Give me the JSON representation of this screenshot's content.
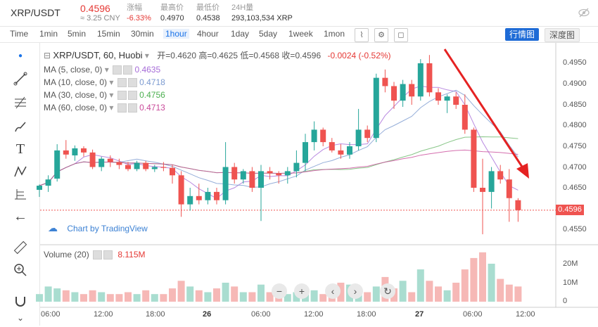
{
  "header": {
    "symbol": "XRP/USDT",
    "price": "0.4596",
    "cny": "≈ 3.25 CNY",
    "stats": [
      {
        "label": "涨幅",
        "value": "-6.33%",
        "red": true
      },
      {
        "label": "最高价",
        "value": "0.4970",
        "red": false
      },
      {
        "label": "最低价",
        "value": "0.4538",
        "red": false
      },
      {
        "label": "24H量",
        "value": "293,103,534 XRP",
        "red": false
      }
    ]
  },
  "timeframes": [
    "Time",
    "1min",
    "5min",
    "15min",
    "30min",
    "1hour",
    "4hour",
    "1day",
    "5day",
    "1week",
    "1mon"
  ],
  "active_timeframe": "1hour",
  "toolbar_icons": [
    "candle-style-icon",
    "settings-icon",
    "screenshot-icon"
  ],
  "view_buttons": {
    "active": "行情图",
    "inactive": "深度图"
  },
  "legend": {
    "title": "XRP/USDT, 60, Huobi",
    "ohlc": "开=0.4620  高=0.4625  低=0.4568  收=0.4596",
    "change": "-0.0024 (-0.52%)",
    "mas": [
      {
        "name": "MA (5, close, 0)",
        "value": "0.4635",
        "color": "#a66cd8"
      },
      {
        "name": "MA (10, close, 0)",
        "value": "0.4718",
        "color": "#7b9ad0"
      },
      {
        "name": "MA (30, close, 0)",
        "value": "0.4756",
        "color": "#6ab86a"
      },
      {
        "name": "MA (60, close, 0)",
        "value": "0.4713",
        "color": "#c94a9a"
      }
    ],
    "volume": {
      "name": "Volume (20)",
      "value": "8.115M"
    }
  },
  "y_axis": [
    "0.4950",
    "0.4900",
    "0.4850",
    "0.4800",
    "0.4750",
    "0.4700",
    "0.4650",
    "0.4550"
  ],
  "current_price_tag": "0.4596",
  "vol_axis": [
    "20M",
    "10M",
    "0"
  ],
  "x_axis": [
    {
      "label": "06:00",
      "bold": false
    },
    {
      "label": "12:00",
      "bold": false
    },
    {
      "label": "18:00",
      "bold": false
    },
    {
      "label": "26",
      "bold": true
    },
    {
      "label": "06:00",
      "bold": false
    },
    {
      "label": "12:00",
      "bold": false
    },
    {
      "label": "18:00",
      "bold": false
    },
    {
      "label": "27",
      "bold": true
    },
    {
      "label": "06:00",
      "bold": false
    },
    {
      "label": "12:00",
      "bold": false
    }
  ],
  "watermark": "Chart by TradingView",
  "tools": [
    "cursor-icon",
    "trendline-icon",
    "fib-icon",
    "brush-icon",
    "text-icon",
    "pattern-icon",
    "measure-icon",
    "back-arrow-icon",
    "ruler-icon",
    "zoom-in-icon",
    "magnet-icon"
  ],
  "nav_buttons": [
    "−",
    "+",
    "‹",
    "›",
    "↻"
  ],
  "colors": {
    "up": "#26a69a",
    "down": "#ef5350",
    "arrow": "#e52222"
  },
  "candles": [
    {
      "o": 0.4645,
      "h": 0.4658,
      "l": 0.4628,
      "c": 0.4655
    },
    {
      "o": 0.4655,
      "h": 0.468,
      "l": 0.464,
      "c": 0.467
    },
    {
      "o": 0.4672,
      "h": 0.4755,
      "l": 0.4665,
      "c": 0.474
    },
    {
      "o": 0.474,
      "h": 0.4765,
      "l": 0.472,
      "c": 0.473
    },
    {
      "o": 0.4728,
      "h": 0.4752,
      "l": 0.4715,
      "c": 0.4745
    },
    {
      "o": 0.4745,
      "h": 0.475,
      "l": 0.4725,
      "c": 0.4735
    },
    {
      "o": 0.4735,
      "h": 0.4742,
      "l": 0.4695,
      "c": 0.47
    },
    {
      "o": 0.47,
      "h": 0.4725,
      "l": 0.469,
      "c": 0.472
    },
    {
      "o": 0.472,
      "h": 0.4728,
      "l": 0.47,
      "c": 0.4712
    },
    {
      "o": 0.4712,
      "h": 0.472,
      "l": 0.4695,
      "c": 0.4705
    },
    {
      "o": 0.4705,
      "h": 0.4712,
      "l": 0.469,
      "c": 0.4695
    },
    {
      "o": 0.4695,
      "h": 0.4715,
      "l": 0.469,
      "c": 0.471
    },
    {
      "o": 0.471,
      "h": 0.4715,
      "l": 0.469,
      "c": 0.4695
    },
    {
      "o": 0.4695,
      "h": 0.4705,
      "l": 0.4688,
      "c": 0.47
    },
    {
      "o": 0.47,
      "h": 0.4712,
      "l": 0.469,
      "c": 0.4698
    },
    {
      "o": 0.4698,
      "h": 0.4705,
      "l": 0.466,
      "c": 0.468
    },
    {
      "o": 0.468,
      "h": 0.469,
      "l": 0.458,
      "c": 0.461
    },
    {
      "o": 0.461,
      "h": 0.465,
      "l": 0.4595,
      "c": 0.463
    },
    {
      "o": 0.463,
      "h": 0.466,
      "l": 0.461,
      "c": 0.462
    },
    {
      "o": 0.462,
      "h": 0.465,
      "l": 0.461,
      "c": 0.464
    },
    {
      "o": 0.464,
      "h": 0.465,
      "l": 0.461,
      "c": 0.462
    },
    {
      "o": 0.462,
      "h": 0.476,
      "l": 0.461,
      "c": 0.47
    },
    {
      "o": 0.47,
      "h": 0.471,
      "l": 0.466,
      "c": 0.467
    },
    {
      "o": 0.467,
      "h": 0.4695,
      "l": 0.466,
      "c": 0.469
    },
    {
      "o": 0.469,
      "h": 0.47,
      "l": 0.464,
      "c": 0.465
    },
    {
      "o": 0.465,
      "h": 0.4705,
      "l": 0.457,
      "c": 0.469
    },
    {
      "o": 0.469,
      "h": 0.47,
      "l": 0.467,
      "c": 0.4685
    },
    {
      "o": 0.4685,
      "h": 0.469,
      "l": 0.466,
      "c": 0.468
    },
    {
      "o": 0.468,
      "h": 0.47,
      "l": 0.466,
      "c": 0.469
    },
    {
      "o": 0.469,
      "h": 0.474,
      "l": 0.4675,
      "c": 0.471
    },
    {
      "o": 0.471,
      "h": 0.478,
      "l": 0.469,
      "c": 0.476
    },
    {
      "o": 0.476,
      "h": 0.481,
      "l": 0.474,
      "c": 0.479
    },
    {
      "o": 0.479,
      "h": 0.4795,
      "l": 0.475,
      "c": 0.476
    },
    {
      "o": 0.476,
      "h": 0.477,
      "l": 0.4735,
      "c": 0.474
    },
    {
      "o": 0.474,
      "h": 0.4755,
      "l": 0.472,
      "c": 0.473
    },
    {
      "o": 0.473,
      "h": 0.476,
      "l": 0.472,
      "c": 0.475
    },
    {
      "o": 0.475,
      "h": 0.484,
      "l": 0.474,
      "c": 0.479
    },
    {
      "o": 0.479,
      "h": 0.48,
      "l": 0.476,
      "c": 0.477
    },
    {
      "o": 0.477,
      "h": 0.4925,
      "l": 0.476,
      "c": 0.4915
    },
    {
      "o": 0.4915,
      "h": 0.4935,
      "l": 0.488,
      "c": 0.4895
    },
    {
      "o": 0.4895,
      "h": 0.4905,
      "l": 0.484,
      "c": 0.486
    },
    {
      "o": 0.486,
      "h": 0.491,
      "l": 0.4845,
      "c": 0.49
    },
    {
      "o": 0.49,
      "h": 0.491,
      "l": 0.485,
      "c": 0.487
    },
    {
      "o": 0.487,
      "h": 0.496,
      "l": 0.486,
      "c": 0.495
    },
    {
      "o": 0.495,
      "h": 0.497,
      "l": 0.487,
      "c": 0.488
    },
    {
      "o": 0.488,
      "h": 0.489,
      "l": 0.485,
      "c": 0.486
    },
    {
      "o": 0.486,
      "h": 0.4875,
      "l": 0.483,
      "c": 0.487
    },
    {
      "o": 0.487,
      "h": 0.488,
      "l": 0.484,
      "c": 0.485
    },
    {
      "o": 0.485,
      "h": 0.4875,
      "l": 0.478,
      "c": 0.479
    },
    {
      "o": 0.479,
      "h": 0.4795,
      "l": 0.464,
      "c": 0.465
    },
    {
      "o": 0.465,
      "h": 0.472,
      "l": 0.4538,
      "c": 0.464
    },
    {
      "o": 0.464,
      "h": 0.47,
      "l": 0.46,
      "c": 0.469
    },
    {
      "o": 0.469,
      "h": 0.4705,
      "l": 0.466,
      "c": 0.467
    },
    {
      "o": 0.467,
      "h": 0.4695,
      "l": 0.4568,
      "c": 0.4625
    },
    {
      "o": 0.462,
      "h": 0.4625,
      "l": 0.4568,
      "c": 0.4596
    }
  ],
  "volumes": [
    4,
    8,
    7,
    6,
    5,
    4,
    6,
    5,
    4,
    4,
    5,
    4,
    6,
    4,
    4,
    7,
    11,
    8,
    6,
    5,
    7,
    10,
    8,
    5,
    5,
    9,
    5,
    4,
    4,
    5,
    7,
    6,
    4,
    6,
    10,
    9,
    6,
    5,
    8,
    13,
    7,
    11,
    5,
    17,
    11,
    8,
    6,
    10,
    17,
    23,
    26,
    20,
    12,
    9,
    8
  ]
}
